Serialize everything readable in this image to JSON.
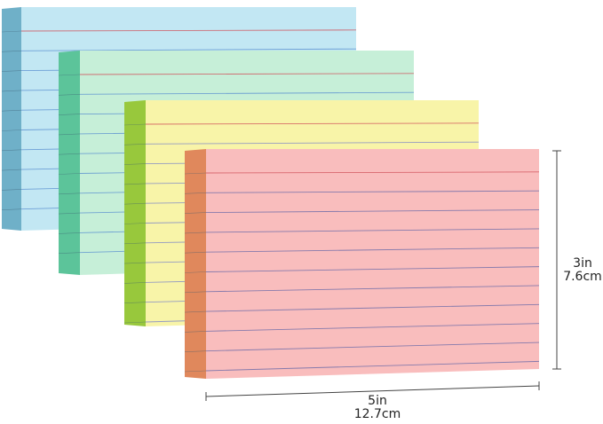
{
  "product": {
    "pads": [
      {
        "name": "blue",
        "front": "#c2e7f3",
        "side": "#6fb0c8",
        "line": "#5a8fd0"
      },
      {
        "name": "green",
        "front": "#c6efd8",
        "side": "#5cc49a",
        "line": "#5a8fd0"
      },
      {
        "name": "yellow",
        "front": "#f8f4a8",
        "side": "#98c83c",
        "line": "#7d86c8"
      },
      {
        "name": "pink",
        "front": "#f9bdbd",
        "side": "#e0885c",
        "line": "#6a6aa8"
      }
    ],
    "header_line_color": "#d0505a",
    "dimensions": {
      "height_in": "3in",
      "height_cm": "7.6cm",
      "width_in": "5in",
      "width_cm": "12.7cm"
    }
  }
}
